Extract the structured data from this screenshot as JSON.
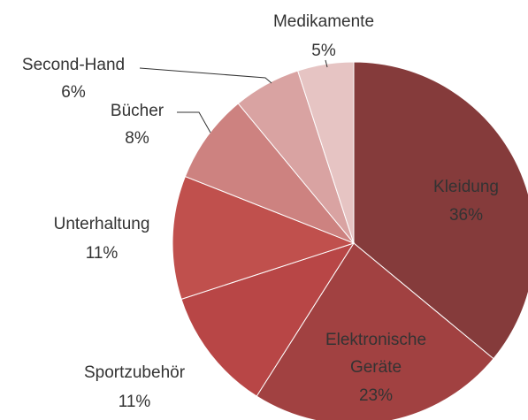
{
  "chart_data": {
    "type": "pie",
    "categories": [
      "Kleidung",
      "Elektronische Geräte",
      "Sportzubehör",
      "Unterhaltung",
      "Bücher",
      "Second-Hand",
      "Medikamente"
    ],
    "values": [
      36,
      23,
      11,
      11,
      8,
      6,
      5
    ],
    "value_labels": [
      "36%",
      "23%",
      "11%",
      "11%",
      "8%",
      "6%",
      "5%"
    ],
    "colors": [
      "#853b3b",
      "#a14141",
      "#b84646",
      "#c0504d",
      "#cd8280",
      "#d9a3a2",
      "#e6c4c3"
    ]
  }
}
